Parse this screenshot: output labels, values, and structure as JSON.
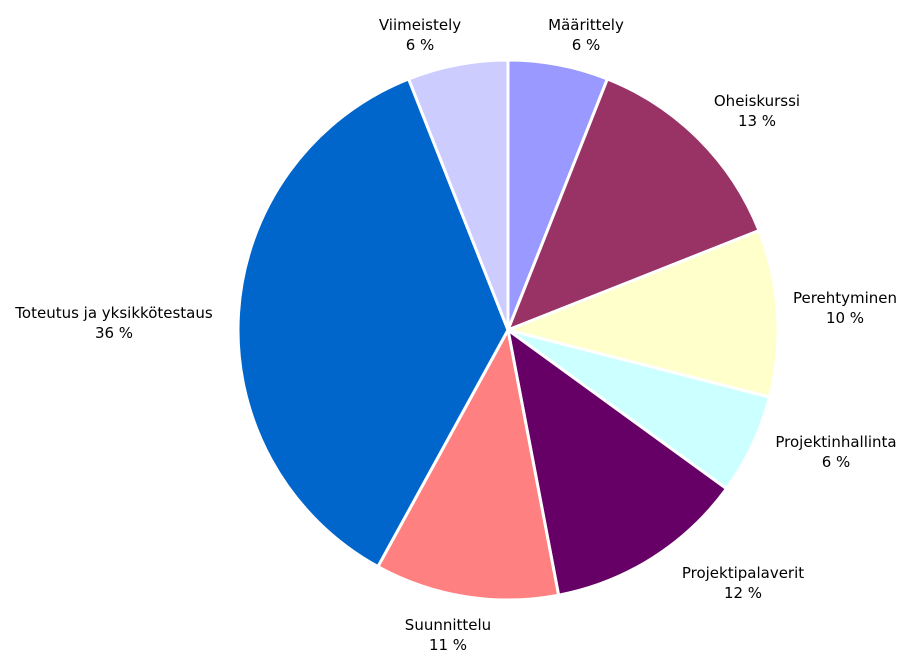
{
  "chart_data": {
    "type": "pie",
    "start_angle_deg": 0,
    "direction": "clockwise",
    "slices": [
      {
        "label": "Määrittely",
        "value": 6,
        "value_label": "6 %",
        "color": "#9999ff"
      },
      {
        "label": "Oheiskurssi",
        "value": 13,
        "value_label": "13 %",
        "color": "#993366"
      },
      {
        "label": "Perehtyminen",
        "value": 10,
        "value_label": "10 %",
        "color": "#ffffcc"
      },
      {
        "label": "Projektinhallinta",
        "value": 6,
        "value_label": "6 %",
        "color": "#ccffff"
      },
      {
        "label": "Projektipalaverit",
        "value": 12,
        "value_label": "12 %",
        "color": "#660066"
      },
      {
        "label": "Suunnittelu",
        "value": 11,
        "value_label": "11 %",
        "color": "#ff8080"
      },
      {
        "label": "Toteutus ja yksikkötestaus",
        "value": 36,
        "value_label": "36 %",
        "color": "#0066cc"
      },
      {
        "label": "Viimeistely",
        "value": 6,
        "value_label": "6 %",
        "color": "#ccccff"
      }
    ]
  }
}
